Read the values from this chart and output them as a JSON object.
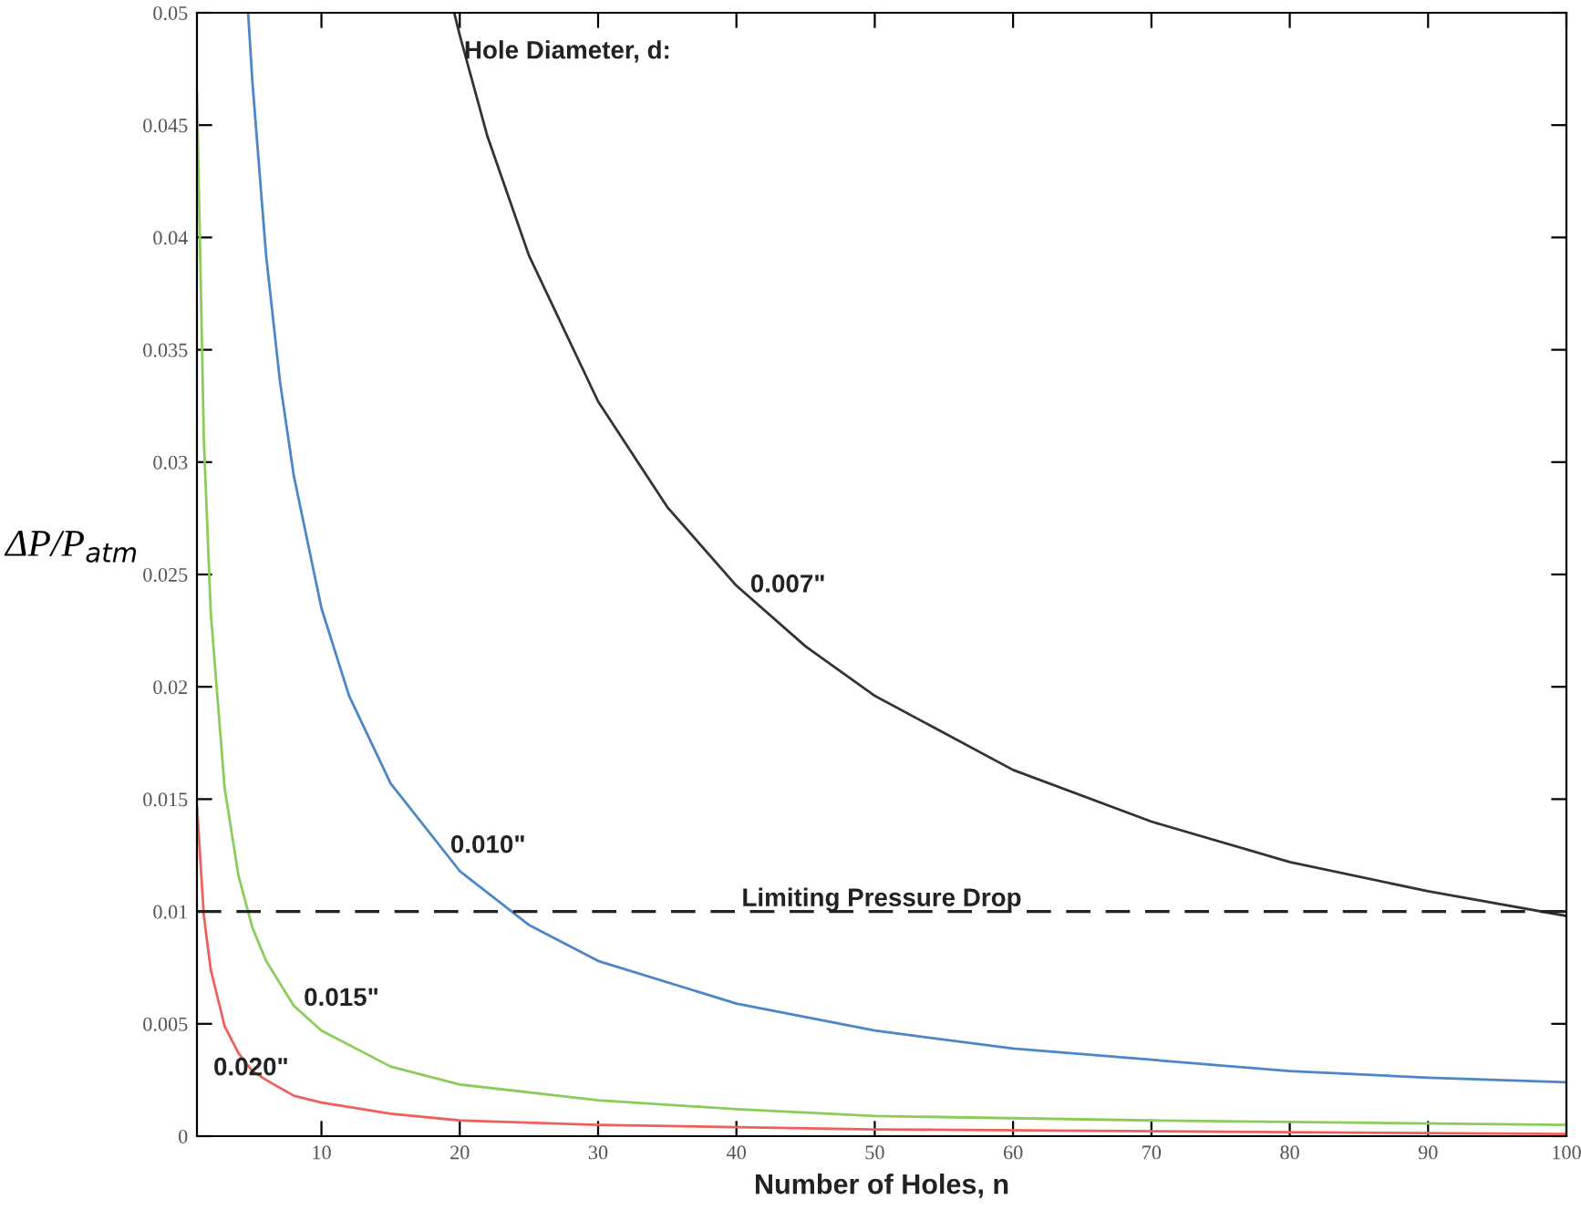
{
  "chart_data": {
    "type": "line",
    "xlabel": "Number of Holes, n",
    "ylabel": "ΔP/P$_{atm}$",
    "xlim": [
      1,
      100
    ],
    "ylim": [
      0,
      0.05
    ],
    "xticks": [
      10,
      20,
      30,
      40,
      50,
      60,
      70,
      80,
      90,
      100
    ],
    "yticks": [
      0,
      0.005,
      0.01,
      0.015,
      0.02,
      0.025,
      0.03,
      0.035,
      0.04,
      0.045,
      0.05
    ],
    "grid": false,
    "legend": false,
    "marker": "none",
    "line_style": "solid",
    "series": [
      {
        "color": "#333333",
        "x": [
          19.6,
          20,
          22,
          25,
          30,
          35,
          40,
          45,
          50,
          60,
          70,
          80,
          90,
          100
        ],
        "values": [
          0.05,
          0.049,
          0.0445,
          0.0392,
          0.0327,
          0.028,
          0.0245,
          0.0218,
          0.0196,
          0.0163,
          0.014,
          0.0122,
          0.0109,
          0.0098
        ]
      },
      {
        "color": "#4a86c8",
        "x": [
          4.7,
          5,
          6,
          7,
          8,
          10,
          12,
          15,
          20,
          25,
          30,
          40,
          50,
          60,
          70,
          80,
          90,
          100
        ],
        "values": [
          0.05,
          0.047,
          0.0392,
          0.0336,
          0.0294,
          0.0235,
          0.0196,
          0.0157,
          0.0118,
          0.0094,
          0.0078,
          0.0059,
          0.0047,
          0.0039,
          0.0034,
          0.0029,
          0.0026,
          0.0024
        ]
      },
      {
        "color": "#8ccc5a",
        "x": [
          1,
          1.5,
          2,
          3,
          4,
          5,
          6,
          8,
          10,
          15,
          20,
          30,
          40,
          50,
          70,
          100
        ],
        "values": [
          0.0465,
          0.031,
          0.0233,
          0.0155,
          0.0116,
          0.0093,
          0.0078,
          0.0058,
          0.0047,
          0.0031,
          0.0023,
          0.0016,
          0.0012,
          0.0009,
          0.0007,
          0.0005
        ]
      },
      {
        "color": "#f0605a",
        "x": [
          1,
          1.5,
          2,
          3,
          4,
          5,
          6,
          8,
          10,
          15,
          20,
          30,
          50,
          100
        ],
        "values": [
          0.0147,
          0.0098,
          0.0074,
          0.0049,
          0.0037,
          0.0029,
          0.0025,
          0.0018,
          0.0015,
          0.001,
          0.0007,
          0.0005,
          0.0003,
          0.0001
        ]
      }
    ],
    "ref_lines": [
      {
        "axis": "y",
        "value": 0.01,
        "label": "Limiting Pressure Drop",
        "color": "#222222",
        "line_style": "dashed"
      }
    ],
    "annotations": [
      "Hole Diameter, d:",
      "0.007\"",
      "0.010\"",
      "0.015\"",
      "0.020\""
    ]
  }
}
